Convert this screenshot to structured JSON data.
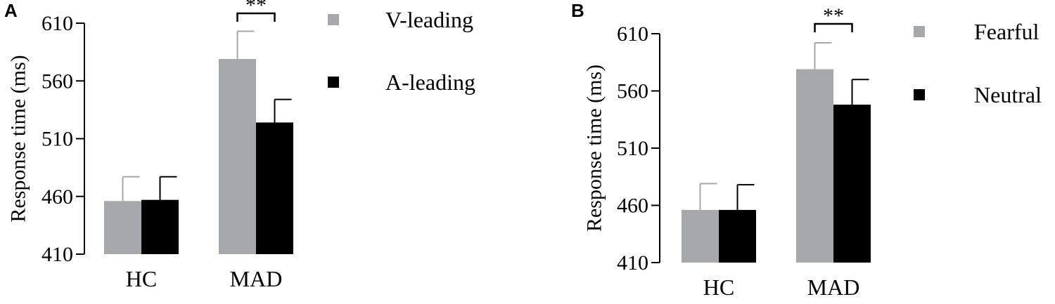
{
  "chart_data": [
    {
      "panel": "A",
      "type": "bar",
      "ylabel": "Response time (ms)",
      "xlabel": "",
      "ylim": [
        410,
        610
      ],
      "yticks": [
        410,
        460,
        510,
        560,
        610
      ],
      "categories": [
        "HC",
        "MAD"
      ],
      "series": [
        {
          "name": "V-leading",
          "color": "#a7a8ac",
          "values": [
            456,
            579
          ],
          "error": [
            21,
            24
          ]
        },
        {
          "name": "A-leading",
          "color": "#000000",
          "values": [
            457,
            524
          ],
          "error": [
            20,
            20
          ]
        }
      ],
      "annotations": [
        {
          "category": "MAD",
          "text": "**"
        }
      ],
      "legend": "right"
    },
    {
      "panel": "B",
      "type": "bar",
      "ylabel": "Response time (ms)",
      "xlabel": "",
      "ylim": [
        410,
        610
      ],
      "yticks": [
        410,
        460,
        510,
        560,
        610
      ],
      "categories": [
        "HC",
        "MAD"
      ],
      "series": [
        {
          "name": "Fearful",
          "color": "#a7a8ac",
          "values": [
            456,
            579
          ],
          "error": [
            23,
            23
          ]
        },
        {
          "name": "Neutral",
          "color": "#000000",
          "values": [
            456,
            548
          ],
          "error": [
            22,
            22
          ]
        }
      ],
      "annotations": [
        {
          "category": "MAD",
          "text": "**"
        }
      ],
      "legend": "right"
    }
  ]
}
